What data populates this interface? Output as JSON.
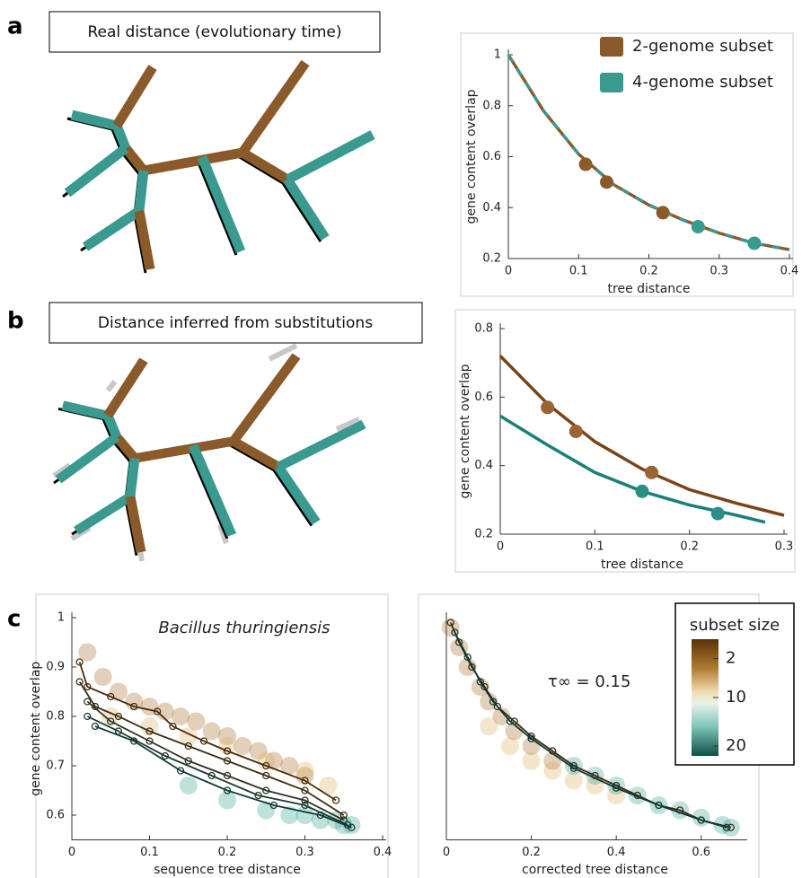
{
  "panels": [
    {
      "label": "a",
      "caption": "Real distance (evolutionary time)"
    },
    {
      "label": "b",
      "caption": "Distance inferred from substitutions"
    },
    {
      "label": "c"
    }
  ],
  "chart_data": [
    {
      "type": "line",
      "xlabel": "tree distance",
      "ylabel": "gene content  overlap",
      "xlim": [
        0,
        0.4
      ],
      "xticks": [
        0,
        0.1,
        0.2,
        0.3,
        0.4
      ],
      "ylim": [
        0.2,
        1
      ],
      "yticks": [
        0.2,
        0.4,
        0.6,
        0.8,
        1
      ],
      "legend": "upper right",
      "curves": [
        {
          "colors": [
            "#8b5a2b",
            "#3a9a8f"
          ],
          "dashed": true,
          "x": [
            0,
            0.05,
            0.1,
            0.15,
            0.2,
            0.25,
            0.3,
            0.35,
            0.4
          ],
          "values": [
            1,
            0.78,
            0.61,
            0.49,
            0.41,
            0.35,
            0.3,
            0.26,
            0.235
          ]
        }
      ],
      "series": [
        {
          "name": "2-genome subset",
          "color": "#8b5a2b",
          "x": [
            0.11,
            0.14,
            0.22
          ],
          "values": [
            0.57,
            0.5,
            0.38
          ]
        },
        {
          "name": "4-genome subset",
          "color": "#3a9a8f",
          "x": [
            0.27,
            0.35
          ],
          "values": [
            0.325,
            0.26
          ]
        }
      ]
    },
    {
      "type": "line",
      "xlabel": "tree distance",
      "ylabel": "gene content  overlap",
      "xlim": [
        0,
        0.3
      ],
      "xticks": [
        0,
        0.1,
        0.2,
        0.3
      ],
      "ylim": [
        0.2,
        0.8
      ],
      "yticks": [
        0.2,
        0.4,
        0.6,
        0.8
      ],
      "curves": [
        {
          "colors": [
            "#7a4418"
          ],
          "x": [
            0,
            0.05,
            0.1,
            0.15,
            0.2,
            0.25,
            0.3
          ],
          "values": [
            0.72,
            0.58,
            0.47,
            0.39,
            0.33,
            0.29,
            0.255
          ]
        },
        {
          "colors": [
            "#1a8078"
          ],
          "x": [
            0,
            0.05,
            0.1,
            0.15,
            0.2,
            0.25,
            0.28
          ],
          "values": [
            0.545,
            0.46,
            0.38,
            0.325,
            0.285,
            0.255,
            0.235
          ]
        }
      ],
      "series": [
        {
          "color": "#9a6434",
          "x": [
            0.05,
            0.08,
            0.16
          ],
          "values": [
            0.57,
            0.5,
            0.38
          ]
        },
        {
          "color": "#2a8f86",
          "x": [
            0.15,
            0.23
          ],
          "values": [
            0.325,
            0.26
          ]
        }
      ]
    },
    {
      "type": "scatter",
      "title": "Bacillus thuringiensis",
      "xlabel": "sequence tree distance",
      "ylabel": "gene content overlap",
      "xlim": [
        0,
        0.4
      ],
      "xticks": [
        0,
        0.1,
        0.2,
        0.3,
        0.4
      ],
      "ylim": [
        0.55,
        1
      ],
      "yticks": [
        0.6,
        0.7,
        0.8,
        0.9,
        1
      ],
      "clouds": [
        {
          "color": "#a0621c",
          "x": [
            0.02,
            0.04,
            0.06,
            0.08,
            0.1,
            0.12,
            0.14,
            0.16,
            0.18,
            0.2,
            0.22,
            0.24,
            0.26,
            0.28,
            0.3
          ],
          "values": [
            0.93,
            0.88,
            0.85,
            0.83,
            0.82,
            0.81,
            0.8,
            0.79,
            0.77,
            0.76,
            0.74,
            0.73,
            0.71,
            0.7,
            0.68
          ]
        },
        {
          "color": "#d9a955",
          "x": [
            0.05,
            0.1,
            0.15,
            0.2,
            0.25,
            0.3,
            0.33
          ],
          "values": [
            0.8,
            0.78,
            0.76,
            0.74,
            0.71,
            0.69,
            0.66
          ]
        },
        {
          "color": "#2a9a8c",
          "x": [
            0.15,
            0.2,
            0.25,
            0.28,
            0.3,
            0.32,
            0.34,
            0.35,
            0.36
          ],
          "values": [
            0.66,
            0.63,
            0.61,
            0.6,
            0.6,
            0.59,
            0.59,
            0.58,
            0.58
          ]
        }
      ],
      "series": [
        {
          "color": "#4a2c0a",
          "x": [
            0.01,
            0.02,
            0.05,
            0.08,
            0.11,
            0.13,
            0.17,
            0.2,
            0.25,
            0.3,
            0.34
          ],
          "values": [
            0.91,
            0.86,
            0.84,
            0.82,
            0.81,
            0.78,
            0.75,
            0.73,
            0.7,
            0.67,
            0.63
          ]
        },
        {
          "color": "#3d2f14",
          "x": [
            0.01,
            0.03,
            0.06,
            0.1,
            0.15,
            0.2,
            0.25,
            0.3,
            0.35
          ],
          "values": [
            0.87,
            0.82,
            0.8,
            0.77,
            0.74,
            0.71,
            0.68,
            0.65,
            0.6
          ]
        },
        {
          "color": "#2f3322",
          "x": [
            0.02,
            0.05,
            0.1,
            0.15,
            0.2,
            0.25,
            0.3,
            0.35
          ],
          "values": [
            0.83,
            0.79,
            0.75,
            0.71,
            0.68,
            0.65,
            0.63,
            0.59
          ]
        },
        {
          "color": "#1c3a30",
          "x": [
            0.02,
            0.06,
            0.12,
            0.18,
            0.24,
            0.3,
            0.355
          ],
          "values": [
            0.8,
            0.77,
            0.72,
            0.68,
            0.64,
            0.62,
            0.58
          ]
        },
        {
          "color": "#0e3b34",
          "x": [
            0.03,
            0.08,
            0.14,
            0.2,
            0.26,
            0.32,
            0.36
          ],
          "values": [
            0.78,
            0.75,
            0.69,
            0.65,
            0.62,
            0.6,
            0.575
          ]
        }
      ]
    },
    {
      "type": "scatter",
      "annotation": "τ∞ = 0.15",
      "xlabel": "corrected tree distance",
      "xlim": [
        0,
        0.7
      ],
      "xticks": [
        0,
        0.2,
        0.4,
        0.6
      ],
      "ylim": [
        0.55,
        1
      ],
      "clouds": [
        {
          "color": "#a0621c",
          "x": [
            0.01,
            0.03,
            0.05,
            0.08,
            0.1,
            0.13,
            0.16,
            0.2,
            0.25
          ],
          "values": [
            0.98,
            0.94,
            0.9,
            0.86,
            0.83,
            0.8,
            0.77,
            0.74,
            0.71
          ]
        },
        {
          "color": "#d9a955",
          "x": [
            0.1,
            0.15,
            0.2,
            0.25,
            0.3,
            0.35,
            0.4
          ],
          "values": [
            0.78,
            0.74,
            0.71,
            0.69,
            0.67,
            0.66,
            0.64
          ]
        },
        {
          "color": "#2a9a8c",
          "x": [
            0.3,
            0.35,
            0.4,
            0.45,
            0.5,
            0.55,
            0.6,
            0.65,
            0.67
          ],
          "values": [
            0.7,
            0.68,
            0.66,
            0.64,
            0.62,
            0.61,
            0.595,
            0.58,
            0.575
          ]
        }
      ],
      "series": [
        {
          "color": "#3a2a10",
          "x": [
            0.01,
            0.03,
            0.06,
            0.09,
            0.12,
            0.16,
            0.2,
            0.25,
            0.3,
            0.35,
            0.4,
            0.45,
            0.5,
            0.55,
            0.6,
            0.67
          ],
          "values": [
            0.99,
            0.95,
            0.9,
            0.86,
            0.82,
            0.79,
            0.76,
            0.73,
            0.7,
            0.68,
            0.66,
            0.64,
            0.62,
            0.61,
            0.59,
            0.575
          ]
        },
        {
          "color": "#0e3b34",
          "x": [
            0.02,
            0.05,
            0.08,
            0.11,
            0.15,
            0.2,
            0.3,
            0.4,
            0.5,
            0.6,
            0.66
          ],
          "values": [
            0.97,
            0.92,
            0.87,
            0.83,
            0.79,
            0.755,
            0.695,
            0.655,
            0.62,
            0.59,
            0.575
          ]
        }
      ],
      "colorbar": {
        "title": "subset size",
        "lim": [
          -2,
          22
        ],
        "ticks": [
          2,
          10,
          20
        ]
      }
    }
  ]
}
